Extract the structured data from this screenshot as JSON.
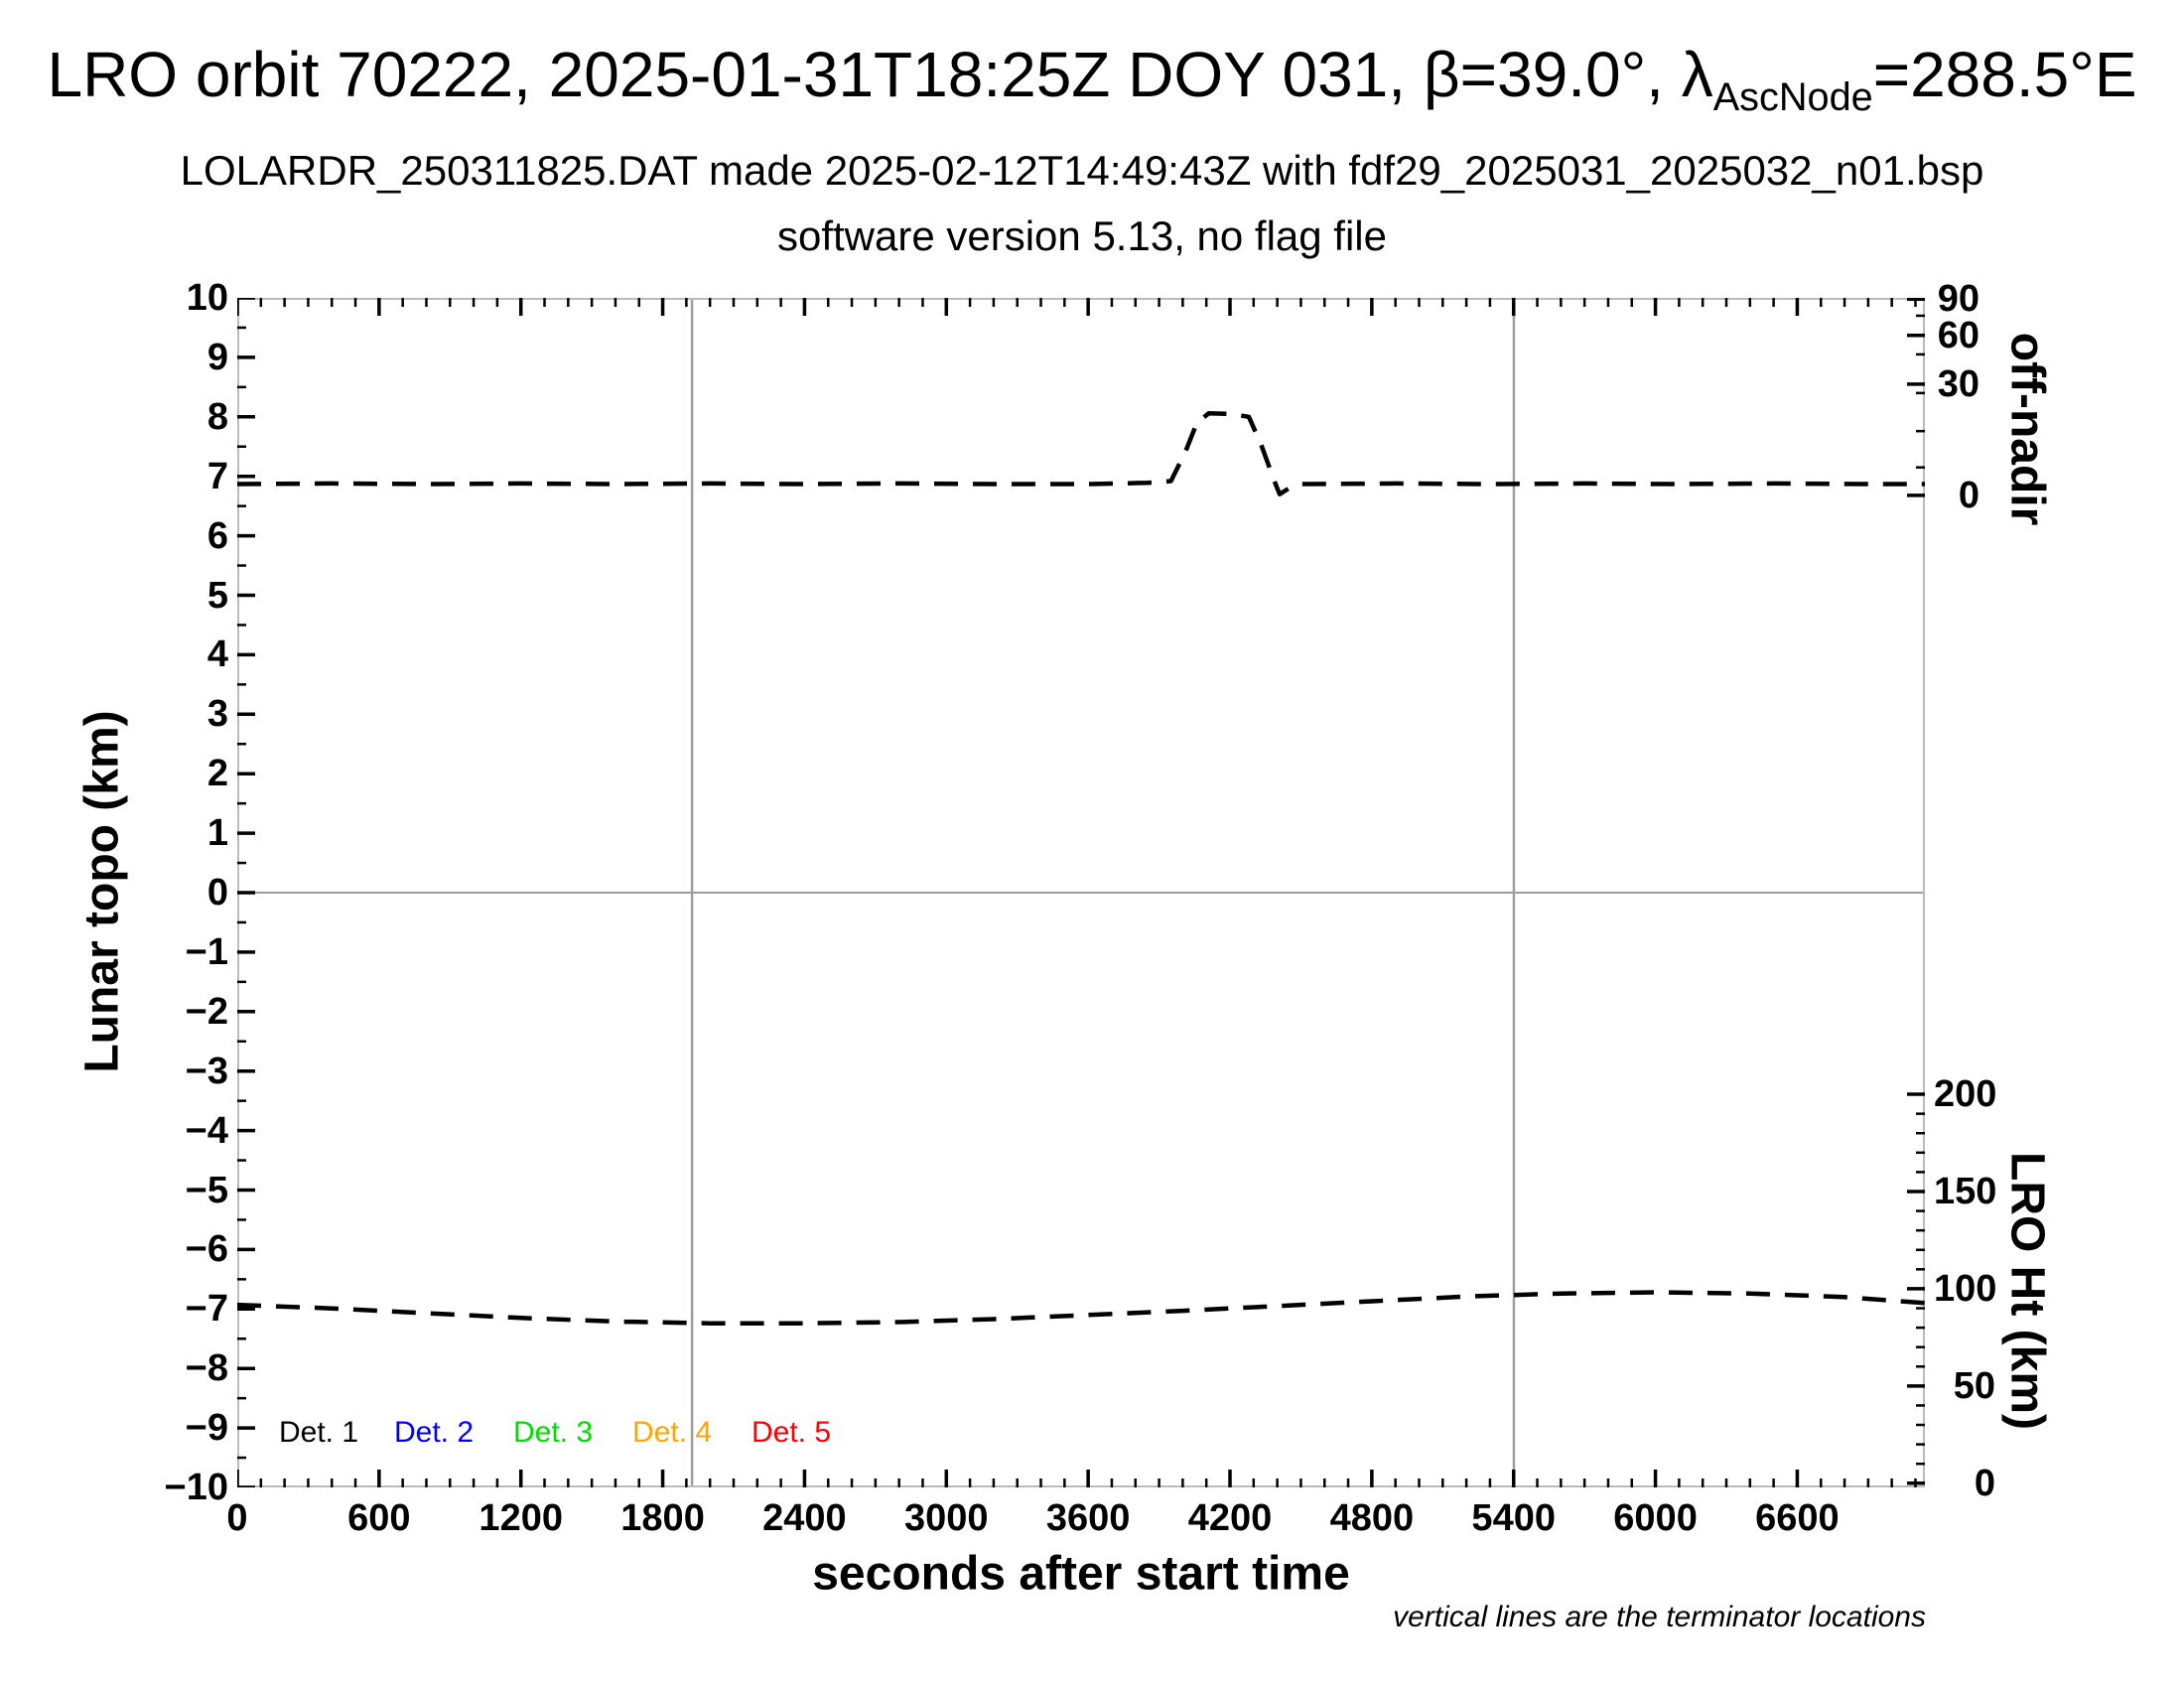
{
  "page": {
    "background": "#ffffff"
  },
  "header": {
    "title_prefix": "LRO orbit 70222, 2025-01-31T18:25Z DOY 031, β=39.0°, λ",
    "title_subscript": "AscNode",
    "title_suffix": "=288.5°E",
    "subtitle_line1": "LOLARDR_250311825.DAT made 2025-02-12T14:49:43Z with fdf29_2025031_2025032_n01.bsp",
    "subtitle_line2": "software version 5.13, no flag file"
  },
  "chart_data": {
    "type": "line",
    "title": "LRO orbit 70222, 2025-01-31T18:25Z DOY 031, β=39.0°, λAscNode=288.5°E",
    "grid": "off",
    "x_axis": {
      "label": "seconds after start time",
      "range": [
        0,
        7140
      ],
      "major_tick_step": 600,
      "minor_tick_step": 100,
      "major_ticks": [
        {
          "value": 0,
          "label": "0"
        },
        {
          "value": 600,
          "label": "600"
        },
        {
          "value": 1200,
          "label": "1200"
        },
        {
          "value": 1800,
          "label": "1800"
        },
        {
          "value": 2400,
          "label": "2400"
        },
        {
          "value": 3000,
          "label": "3000"
        },
        {
          "value": 3600,
          "label": "3600"
        },
        {
          "value": 4200,
          "label": "4200"
        },
        {
          "value": 4800,
          "label": "4800"
        },
        {
          "value": 5400,
          "label": "5400"
        },
        {
          "value": 6000,
          "label": "6000"
        },
        {
          "value": 6600,
          "label": "6600"
        }
      ]
    },
    "y_axis_left": {
      "label": "Lunar topo (km)",
      "range": [
        -10,
        10
      ],
      "major_tick_step": 1,
      "minor_tick_step": 0.5,
      "major_ticks": [
        {
          "value": 10,
          "label": "10"
        },
        {
          "value": 9,
          "label": "9"
        },
        {
          "value": 8,
          "label": "8"
        },
        {
          "value": 7,
          "label": "7"
        },
        {
          "value": 6,
          "label": "6"
        },
        {
          "value": 5,
          "label": "5"
        },
        {
          "value": 4,
          "label": "4"
        },
        {
          "value": 3,
          "label": "3"
        },
        {
          "value": 2,
          "label": "2"
        },
        {
          "value": 1,
          "label": "1"
        },
        {
          "value": 0,
          "label": "0"
        },
        {
          "value": -1,
          "label": "−1"
        },
        {
          "value": -2,
          "label": "−2"
        },
        {
          "value": -3,
          "label": "−3"
        },
        {
          "value": -4,
          "label": "−4"
        },
        {
          "value": -5,
          "label": "−5"
        },
        {
          "value": -6,
          "label": "−6"
        },
        {
          "value": -7,
          "label": "−7"
        },
        {
          "value": -8,
          "label": "−8"
        },
        {
          "value": -9,
          "label": "−9"
        },
        {
          "value": -10,
          "label": "−10"
        }
      ]
    },
    "y_axis_right_top": {
      "label": "off-nadir",
      "unit": "degrees",
      "major_ticks": [
        {
          "value": 90,
          "label": "90",
          "y_topo": 9.98
        },
        {
          "value": 60,
          "label": "60",
          "y_topo": 9.37
        },
        {
          "value": 30,
          "label": "30",
          "y_topo": 8.55
        },
        {
          "value": 0,
          "label": "0",
          "y_topo": 6.68
        }
      ],
      "minor_ticks_y_topo": [
        9.7,
        9.05,
        8.4,
        7.76,
        7.15
      ]
    },
    "y_axis_right_bottom": {
      "label": "LRO Ht (km)",
      "unit": "km",
      "topo_at_0km": -9.93,
      "topo_per_km": 0.0327,
      "minor_tick_step_km": 10,
      "major_ticks": [
        {
          "value": 200,
          "label": "200"
        },
        {
          "value": 150,
          "label": "150"
        },
        {
          "value": 100,
          "label": "100"
        },
        {
          "value": 50,
          "label": "50"
        },
        {
          "value": 0,
          "label": "0"
        }
      ]
    },
    "reference_lines": {
      "zero_topo_line_y": 0,
      "terminator_lines_s": [
        1924,
        5401
      ],
      "line_color": "#9e9e9e",
      "frame_color": "#bcbcbc"
    },
    "series": [
      {
        "name": "spacecraft off-nadir angle",
        "axis": "right-top",
        "color": "#000000",
        "style": "dashed",
        "points_t_s": [
          0,
          400,
          800,
          1200,
          1600,
          2000,
          2400,
          2800,
          3200,
          3600,
          3850,
          3950,
          4010,
          4060,
          4110,
          4200,
          4280,
          4330,
          4390,
          4410,
          4450,
          4500,
          4900,
          5300,
          5700,
          6100,
          6500,
          6900,
          7140
        ],
        "points_y_topo": [
          6.87,
          6.88,
          6.87,
          6.88,
          6.87,
          6.88,
          6.87,
          6.88,
          6.87,
          6.87,
          6.89,
          6.92,
          7.4,
          7.9,
          8.06,
          8.05,
          8.0,
          7.55,
          6.9,
          6.7,
          6.8,
          6.87,
          6.88,
          6.87,
          6.88,
          6.87,
          6.88,
          6.87,
          6.87
        ],
        "points_deg": [
          3.0,
          3.2,
          3.0,
          3.2,
          3.0,
          3.2,
          3.0,
          3.2,
          3.0,
          3.0,
          3.4,
          3.8,
          11.5,
          19.6,
          22.1,
          22.0,
          21.2,
          14.0,
          3.5,
          0.3,
          1.9,
          3.0,
          3.2,
          3.0,
          3.2,
          3.0,
          3.2,
          3.0,
          3.0
        ]
      },
      {
        "name": "LRO height above surface",
        "axis": "right-bottom",
        "color": "#000000",
        "style": "dashed",
        "points_t_s": [
          0,
          400,
          800,
          1200,
          1600,
          2000,
          2400,
          2800,
          3200,
          3600,
          4000,
          4400,
          4800,
          5200,
          5600,
          6000,
          6400,
          6800,
          7140
        ],
        "points_y_topo": [
          -6.93,
          -6.99,
          -7.07,
          -7.15,
          -7.21,
          -7.24,
          -7.24,
          -7.22,
          -7.17,
          -7.1,
          -7.03,
          -6.95,
          -6.87,
          -6.79,
          -6.74,
          -6.72,
          -6.74,
          -6.8,
          -6.9
        ],
        "points_km": [
          91.7,
          89.9,
          87.5,
          85.0,
          83.2,
          82.3,
          82.3,
          82.9,
          84.4,
          86.5,
          88.7,
          91.1,
          93.6,
          96.0,
          97.5,
          98.2,
          97.5,
          95.7,
          92.7
        ]
      }
    ],
    "legend": {
      "position": "bottom-left-inside",
      "items": [
        {
          "label": "Det. 1",
          "color": "#000000"
        },
        {
          "label": "Det. 2",
          "color": "#0000ff"
        },
        {
          "label": "Det. 3",
          "color": "#00dd00"
        },
        {
          "label": "Det. 4",
          "color": "#ffa500"
        },
        {
          "label": "Det. 5",
          "color": "#ff0000"
        }
      ]
    },
    "annotations": {
      "footnote": "vertical lines are the terminator locations"
    }
  }
}
